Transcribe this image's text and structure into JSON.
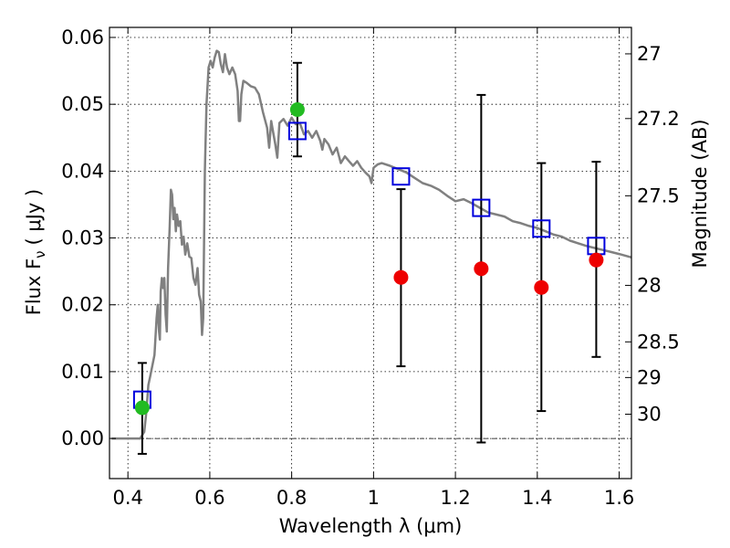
{
  "chart_data": {
    "type": "scatter",
    "xlabel": "Wavelength  λ (μm)",
    "ylabel": "Flux  F",
    "ylabel_sub": "ν",
    "ylabel_unit": "( μJy )",
    "ylabel_right": "Magnitude (AB)",
    "xlim": [
      0.355,
      1.63
    ],
    "ylim": [
      -0.006,
      0.0615
    ],
    "x_ticks": [
      0.4,
      0.6,
      0.8,
      1.0,
      1.2,
      1.4,
      1.6
    ],
    "x_tick_labels": [
      "0.4",
      "0.6",
      "0.8",
      "1",
      "1.2",
      "1.4",
      "1.6"
    ],
    "y_ticks": [
      0.0,
      0.01,
      0.02,
      0.03,
      0.04,
      0.05,
      0.06
    ],
    "y_tick_labels": [
      "0.00",
      "0.01",
      "0.02",
      "0.03",
      "0.04",
      "0.05",
      "0.06"
    ],
    "right_axis_magnitudes": [
      27,
      27.2,
      27.5,
      28,
      28.5,
      29,
      30
    ],
    "right_axis_labels": [
      "27",
      "27.2",
      "27.5",
      "28",
      "28.5",
      "29",
      "30"
    ],
    "grid": true,
    "colors": {
      "sed_line": "#808080",
      "model_box": "#0000dd",
      "detection": "#22bb22",
      "nondetection": "#ee0000",
      "errorbar": "#000000"
    },
    "sed_curve": [
      [
        0.36,
        0.0
      ],
      [
        0.43,
        0.0
      ],
      [
        0.435,
        0.0005
      ],
      [
        0.44,
        0.001
      ],
      [
        0.445,
        0.004
      ],
      [
        0.45,
        0.008
      ],
      [
        0.455,
        0.0095
      ],
      [
        0.46,
        0.011
      ],
      [
        0.465,
        0.0125
      ],
      [
        0.47,
        0.018
      ],
      [
        0.473,
        0.02
      ],
      [
        0.476,
        0.016
      ],
      [
        0.478,
        0.0148
      ],
      [
        0.48,
        0.022
      ],
      [
        0.483,
        0.024
      ],
      [
        0.486,
        0.0225
      ],
      [
        0.489,
        0.024
      ],
      [
        0.492,
        0.0185
      ],
      [
        0.495,
        0.016
      ],
      [
        0.498,
        0.0255
      ],
      [
        0.502,
        0.0315
      ],
      [
        0.505,
        0.0372
      ],
      [
        0.508,
        0.0365
      ],
      [
        0.511,
        0.0328
      ],
      [
        0.514,
        0.0345
      ],
      [
        0.517,
        0.031
      ],
      [
        0.52,
        0.0335
      ],
      [
        0.524,
        0.0318
      ],
      [
        0.528,
        0.0325
      ],
      [
        0.532,
        0.029
      ],
      [
        0.536,
        0.0302
      ],
      [
        0.54,
        0.0275
      ],
      [
        0.545,
        0.0292
      ],
      [
        0.55,
        0.0272
      ],
      [
        0.555,
        0.027
      ],
      [
        0.56,
        0.024
      ],
      [
        0.565,
        0.023
      ],
      [
        0.57,
        0.0255
      ],
      [
        0.574,
        0.0215
      ],
      [
        0.578,
        0.0205
      ],
      [
        0.581,
        0.0155
      ],
      [
        0.584,
        0.018
      ],
      [
        0.588,
        0.04
      ],
      [
        0.592,
        0.05
      ],
      [
        0.597,
        0.0555
      ],
      [
        0.602,
        0.0565
      ],
      [
        0.607,
        0.0555
      ],
      [
        0.612,
        0.057
      ],
      [
        0.617,
        0.058
      ],
      [
        0.622,
        0.0578
      ],
      [
        0.627,
        0.056
      ],
      [
        0.632,
        0.0548
      ],
      [
        0.637,
        0.0575
      ],
      [
        0.642,
        0.0555
      ],
      [
        0.648,
        0.0545
      ],
      [
        0.655,
        0.0555
      ],
      [
        0.662,
        0.0545
      ],
      [
        0.668,
        0.052
      ],
      [
        0.671,
        0.0475
      ],
      [
        0.674,
        0.0475
      ],
      [
        0.677,
        0.0515
      ],
      [
        0.682,
        0.0535
      ],
      [
        0.69,
        0.0532
      ],
      [
        0.7,
        0.0527
      ],
      [
        0.71,
        0.0525
      ],
      [
        0.72,
        0.0515
      ],
      [
        0.73,
        0.0488
      ],
      [
        0.74,
        0.0465
      ],
      [
        0.745,
        0.0435
      ],
      [
        0.75,
        0.0475
      ],
      [
        0.76,
        0.044
      ],
      [
        0.765,
        0.042
      ],
      [
        0.77,
        0.0472
      ],
      [
        0.78,
        0.0478
      ],
      [
        0.79,
        0.0468
      ],
      [
        0.8,
        0.048
      ],
      [
        0.81,
        0.047
      ],
      [
        0.82,
        0.0472
      ],
      [
        0.83,
        0.0455
      ],
      [
        0.84,
        0.046
      ],
      [
        0.85,
        0.045
      ],
      [
        0.86,
        0.046
      ],
      [
        0.87,
        0.0445
      ],
      [
        0.875,
        0.0432
      ],
      [
        0.88,
        0.0448
      ],
      [
        0.89,
        0.044
      ],
      [
        0.9,
        0.0425
      ],
      [
        0.91,
        0.0435
      ],
      [
        0.92,
        0.0412
      ],
      [
        0.93,
        0.0422
      ],
      [
        0.94,
        0.0415
      ],
      [
        0.95,
        0.0408
      ],
      [
        0.96,
        0.0415
      ],
      [
        0.97,
        0.0405
      ],
      [
        0.98,
        0.0398
      ],
      [
        0.99,
        0.0392
      ],
      [
        0.995,
        0.0382
      ],
      [
        1.0,
        0.0405
      ],
      [
        1.01,
        0.041
      ],
      [
        1.02,
        0.0412
      ],
      [
        1.04,
        0.0408
      ],
      [
        1.06,
        0.0403
      ],
      [
        1.08,
        0.0398
      ],
      [
        1.1,
        0.039
      ],
      [
        1.12,
        0.0382
      ],
      [
        1.14,
        0.0378
      ],
      [
        1.16,
        0.0372
      ],
      [
        1.18,
        0.0363
      ],
      [
        1.2,
        0.0355
      ],
      [
        1.22,
        0.0358
      ],
      [
        1.24,
        0.0352
      ],
      [
        1.26,
        0.0345
      ],
      [
        1.28,
        0.0338
      ],
      [
        1.3,
        0.0335
      ],
      [
        1.32,
        0.0332
      ],
      [
        1.34,
        0.0325
      ],
      [
        1.36,
        0.0322
      ],
      [
        1.38,
        0.0318
      ],
      [
        1.4,
        0.0315
      ],
      [
        1.42,
        0.031
      ],
      [
        1.44,
        0.0305
      ],
      [
        1.46,
        0.0302
      ],
      [
        1.48,
        0.0296
      ],
      [
        1.5,
        0.0292
      ],
      [
        1.52,
        0.0288
      ],
      [
        1.54,
        0.0285
      ],
      [
        1.56,
        0.0282
      ],
      [
        1.58,
        0.0279
      ],
      [
        1.6,
        0.0276
      ],
      [
        1.63,
        0.0271
      ]
    ],
    "photometry": [
      {
        "wavelength": 0.435,
        "model_flux": 0.0058,
        "observed_flux": 0.0046,
        "err_low": -0.0023,
        "err_high": 0.0113,
        "status": "detection"
      },
      {
        "wavelength": 0.814,
        "model_flux": 0.046,
        "observed_flux": 0.0492,
        "err_low": 0.0422,
        "err_high": 0.0562,
        "status": "detection"
      },
      {
        "wavelength": 1.067,
        "model_flux": 0.0392,
        "observed_flux": 0.0241,
        "err_low": 0.0108,
        "err_high": 0.0373,
        "status": "nondetection"
      },
      {
        "wavelength": 1.263,
        "model_flux": 0.0345,
        "observed_flux": 0.0254,
        "err_low": -0.0006,
        "err_high": 0.0514,
        "status": "nondetection"
      },
      {
        "wavelength": 1.41,
        "model_flux": 0.0314,
        "observed_flux": 0.0226,
        "err_low": 0.0041,
        "err_high": 0.0412,
        "status": "nondetection"
      },
      {
        "wavelength": 1.544,
        "model_flux": 0.0288,
        "observed_flux": 0.0267,
        "err_low": 0.0122,
        "err_high": 0.0414,
        "status": "nondetection"
      }
    ]
  }
}
